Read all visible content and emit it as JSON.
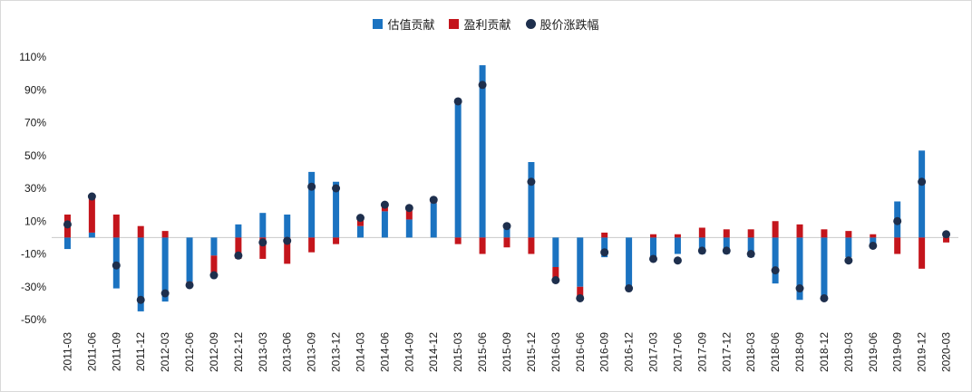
{
  "chart_data": {
    "type": "bar",
    "subtype": "stacked-bars-with-scatter-dots",
    "title": "",
    "legend": [
      {
        "label": "估值贡献",
        "color": "#1B73C1",
        "marker": "square"
      },
      {
        "label": "盈利贡献",
        "color": "#C4151C",
        "marker": "square"
      },
      {
        "label": "股价涨跌幅",
        "color": "#1E2F4D",
        "marker": "circle"
      }
    ],
    "categories": [
      "2011-03",
      "2011-06",
      "2011-09",
      "2011-12",
      "2012-03",
      "2012-06",
      "2012-09",
      "2012-12",
      "2013-03",
      "2013-06",
      "2013-09",
      "2013-12",
      "2014-03",
      "2014-06",
      "2014-09",
      "2014-12",
      "2015-03",
      "2015-06",
      "2015-09",
      "2015-12",
      "2016-03",
      "2016-06",
      "2016-09",
      "2016-12",
      "2017-03",
      "2017-06",
      "2017-09",
      "2017-12",
      "2018-03",
      "2018-06",
      "2018-09",
      "2018-12",
      "2019-03",
      "2019-06",
      "2019-09",
      "2019-12",
      "2020-03"
    ],
    "series": [
      {
        "name": "估值贡献",
        "color": "#1B73C1",
        "values": [
          -7,
          3,
          -31,
          -45,
          -39,
          -27,
          -11,
          8,
          15,
          14,
          40,
          34,
          7,
          16,
          11,
          21,
          84,
          105,
          6,
          46,
          -18,
          -30,
          -12,
          -30,
          -14,
          -10,
          -10,
          -10,
          -12,
          -28,
          -38,
          -36,
          -12,
          -5,
          22,
          53,
          3
        ]
      },
      {
        "name": "盈利贡献",
        "color": "#C4151C",
        "values": [
          14,
          22,
          14,
          7,
          4,
          -2,
          -12,
          -13,
          -13,
          -16,
          -9,
          -4,
          6,
          4,
          8,
          2,
          -4,
          -10,
          -6,
          -10,
          -9,
          -7,
          3,
          -2,
          2,
          2,
          6,
          5,
          5,
          10,
          8,
          5,
          4,
          2,
          -10,
          -19,
          -3
        ]
      }
    ],
    "dots": {
      "name": "股价涨跌幅",
      "color": "#1E2F4D",
      "values": [
        8,
        25,
        -17,
        -38,
        -34,
        -29,
        -23,
        -11,
        -3,
        -2,
        31,
        30,
        12,
        20,
        18,
        23,
        83,
        93,
        7,
        34,
        -26,
        -37,
        -9,
        -31,
        -13,
        -14,
        -8,
        -8,
        -10,
        -20,
        -31,
        -37,
        -14,
        -5,
        10,
        34,
        2
      ]
    },
    "y_ticks": [
      110,
      90,
      70,
      50,
      30,
      10,
      -10,
      -30,
      -50
    ],
    "y_tick_suffix": "%",
    "ylim": [
      -50,
      110
    ],
    "grid": "zero-line-only",
    "legend_position": "top-center",
    "x_label_rotation": -90
  }
}
